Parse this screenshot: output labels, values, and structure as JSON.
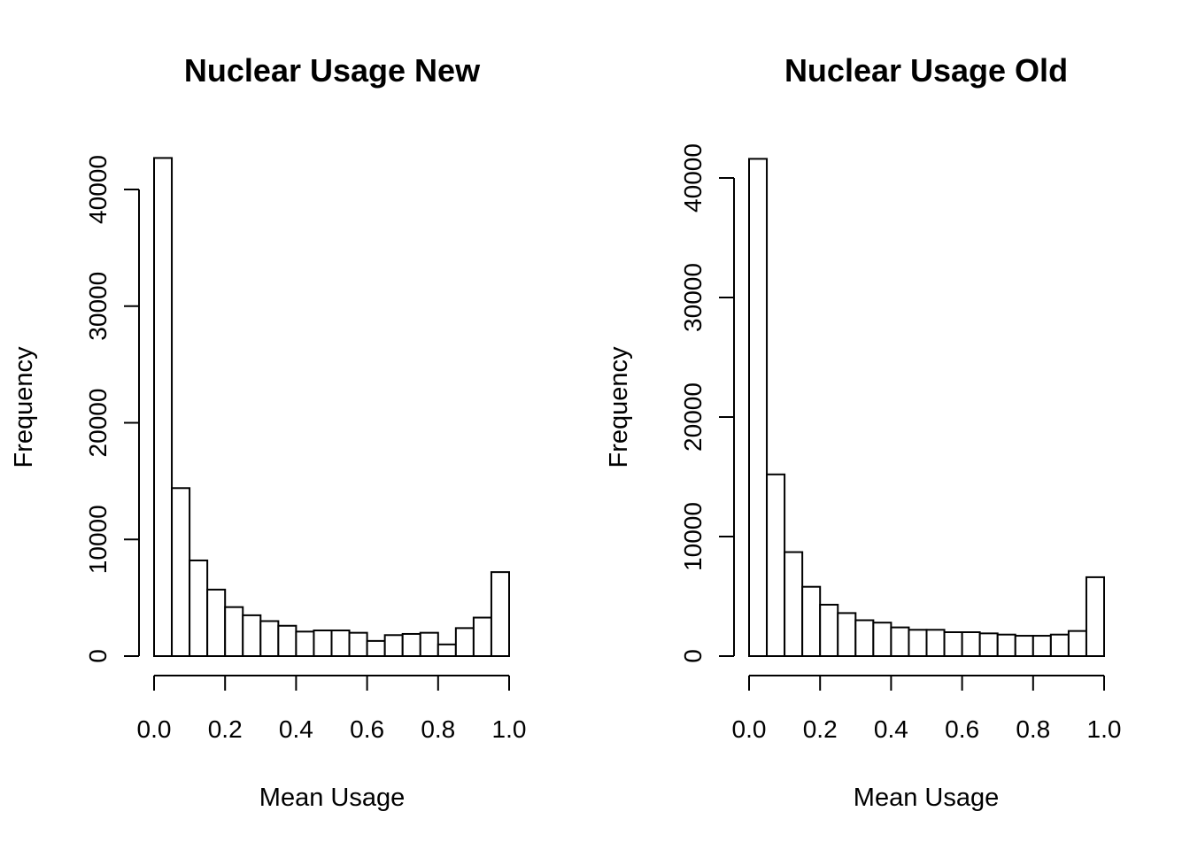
{
  "chart_data": [
    {
      "type": "bar",
      "title": "Nuclear Usage New",
      "xlabel": "Mean Usage",
      "ylabel": "Frequency",
      "xlim": [
        0,
        1
      ],
      "ylim": [
        0,
        40000
      ],
      "bin_width": 0.05,
      "x_ticks": [
        "0.0",
        "0.2",
        "0.4",
        "0.6",
        "0.8",
        "1.0"
      ],
      "y_ticks": [
        "0",
        "10000",
        "20000",
        "30000",
        "40000"
      ],
      "bins": [
        0,
        0.05,
        0.1,
        0.15,
        0.2,
        0.25,
        0.3,
        0.35,
        0.4,
        0.45,
        0.5,
        0.55,
        0.6,
        0.65,
        0.7,
        0.75,
        0.8,
        0.85,
        0.9,
        0.95
      ],
      "values": [
        42700,
        14400,
        8200,
        5700,
        4200,
        3500,
        3000,
        2600,
        2100,
        2200,
        2200,
        2000,
        1300,
        1800,
        1900,
        2000,
        1000,
        2400,
        3300,
        7200
      ]
    },
    {
      "type": "bar",
      "title": "Nuclear Usage Old",
      "xlabel": "Mean Usage",
      "ylabel": "Frequency",
      "xlim": [
        0,
        1
      ],
      "ylim": [
        0,
        40000
      ],
      "bin_width": 0.05,
      "x_ticks": [
        "0.0",
        "0.2",
        "0.4",
        "0.6",
        "0.8",
        "1.0"
      ],
      "y_ticks": [
        "0",
        "10000",
        "20000",
        "30000",
        "40000"
      ],
      "bins": [
        0,
        0.05,
        0.1,
        0.15,
        0.2,
        0.25,
        0.3,
        0.35,
        0.4,
        0.45,
        0.5,
        0.55,
        0.6,
        0.65,
        0.7,
        0.75,
        0.8,
        0.85,
        0.9,
        0.95
      ],
      "values": [
        41600,
        15200,
        8700,
        5800,
        4300,
        3600,
        3000,
        2800,
        2400,
        2200,
        2200,
        2000,
        2000,
        1900,
        1800,
        1700,
        1700,
        1800,
        2100,
        6600
      ]
    }
  ]
}
